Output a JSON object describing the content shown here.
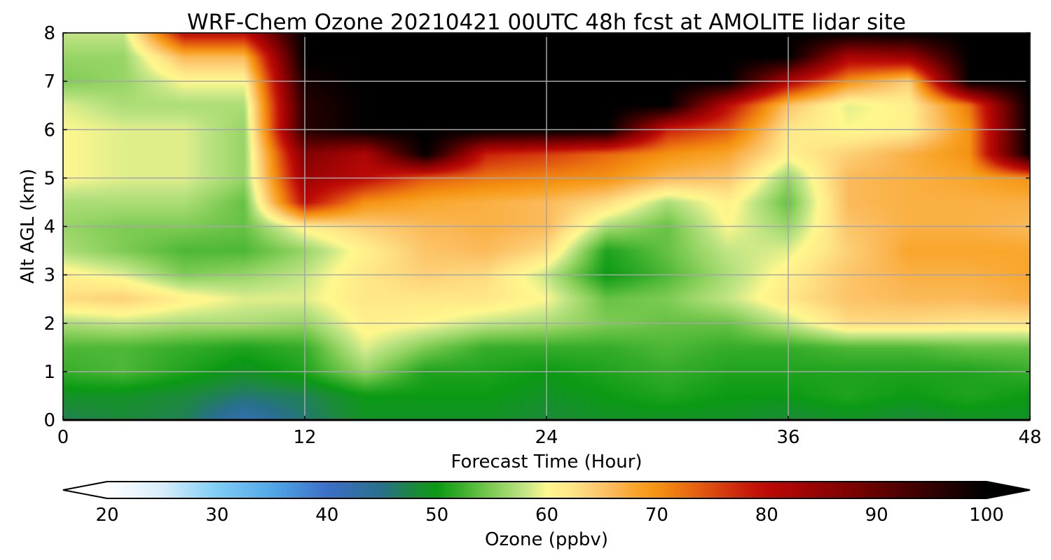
{
  "chart_data": {
    "type": "heatmap",
    "title": "WRF-Chem Ozone  20210421 00UTC 48h fcst at AMOLITE lidar site",
    "xlabel": "Forecast Time (Hour)",
    "ylabel": "Alt AGL (km)",
    "xlim": [
      0,
      48
    ],
    "ylim": [
      0,
      8
    ],
    "xticks": [
      "0",
      "12",
      "24",
      "36",
      "48"
    ],
    "yticks": [
      "0",
      "1",
      "2",
      "3",
      "4",
      "5",
      "6",
      "7",
      "8"
    ],
    "grid": true,
    "x": [
      0,
      3,
      6,
      9,
      12,
      15,
      18,
      21,
      24,
      27,
      30,
      33,
      36,
      39,
      42,
      45,
      48
    ],
    "y": [
      0,
      0.5,
      1,
      1.5,
      2,
      2.5,
      3,
      3.5,
      4,
      4.5,
      5,
      5.5,
      6,
      6.5,
      7,
      7.5,
      8
    ],
    "z_rows_by_altitude": [
      [
        47,
        48,
        47,
        42,
        46,
        49,
        49,
        49,
        48,
        49,
        49,
        49,
        48,
        49,
        48,
        49,
        49
      ],
      [
        49,
        49,
        48,
        46,
        47,
        50,
        50,
        50,
        49,
        50,
        51,
        50,
        50,
        51,
        50,
        51,
        50
      ],
      [
        52,
        53,
        51,
        49,
        51,
        56,
        51,
        51,
        50,
        51,
        52,
        51,
        51,
        51,
        51,
        51,
        52
      ],
      [
        53,
        53,
        52,
        51,
        52,
        59,
        55,
        52,
        52,
        52,
        53,
        52,
        52,
        53,
        53,
        54,
        54
      ],
      [
        57,
        58,
        57,
        57,
        56,
        61,
        60,
        58,
        57,
        55,
        54,
        54,
        58,
        63,
        63,
        62,
        62
      ],
      [
        63,
        64,
        61,
        59,
        59,
        62,
        62,
        62,
        60,
        54,
        55,
        58,
        62,
        65,
        66,
        66,
        67
      ],
      [
        61,
        59,
        55,
        56,
        58,
        62,
        64,
        63,
        58,
        50,
        53,
        57,
        61,
        65,
        67,
        67,
        68
      ],
      [
        57,
        55,
        53,
        53,
        56,
        61,
        65,
        66,
        63,
        51,
        54,
        58,
        59,
        64,
        68,
        68,
        68
      ],
      [
        56,
        55,
        55,
        54,
        61,
        64,
        66,
        67,
        66,
        57,
        54,
        60,
        56,
        65,
        67,
        67,
        66
      ],
      [
        57,
        57,
        57,
        54,
        80,
        70,
        68,
        67,
        66,
        63,
        57,
        61,
        54,
        66,
        67,
        67,
        67
      ],
      [
        60,
        59,
        59,
        56,
        84,
        80,
        74,
        72,
        71,
        70,
        66,
        65,
        56,
        66,
        67,
        68,
        70
      ],
      [
        60,
        59,
        59,
        56,
        87,
        82,
        100,
        78,
        76,
        73,
        70,
        68,
        61,
        64,
        67,
        70,
        100
      ],
      [
        60,
        59,
        59,
        56,
        96,
        100,
        100,
        100,
        100,
        100,
        78,
        74,
        62,
        60,
        61,
        70,
        100
      ],
      [
        59,
        57,
        57,
        57,
        96,
        100,
        100,
        100,
        100,
        100,
        100,
        80,
        65,
        59,
        61,
        72,
        100
      ],
      [
        55,
        56,
        60,
        60,
        98,
        100,
        100,
        100,
        100,
        100,
        100,
        100,
        82,
        70,
        64,
        100,
        100
      ],
      [
        56,
        56,
        66,
        66,
        100,
        100,
        100,
        100,
        100,
        100,
        100,
        100,
        100,
        82,
        84,
        100,
        100
      ],
      [
        58,
        58,
        80,
        80,
        100,
        100,
        100,
        100,
        100,
        100,
        100,
        100,
        100,
        100,
        100,
        100,
        100
      ]
    ],
    "colorbar": {
      "label": "Ozone  (ppbv)",
      "min": 20,
      "max": 100,
      "ticks": [
        "20",
        "30",
        "40",
        "50",
        "60",
        "70",
        "80",
        "90",
        "100"
      ],
      "extend": "both",
      "color_stops": [
        [
          20,
          "#ffffff"
        ],
        [
          25,
          "#d8eefb"
        ],
        [
          30,
          "#7fcdf5"
        ],
        [
          35,
          "#52a8e8"
        ],
        [
          40,
          "#3c6fc8"
        ],
        [
          45,
          "#28708a"
        ],
        [
          48,
          "#1c8a3a"
        ],
        [
          50,
          "#0b9a14"
        ],
        [
          52,
          "#35ad2a"
        ],
        [
          54,
          "#67c244"
        ],
        [
          56,
          "#97d566"
        ],
        [
          58,
          "#c2e586"
        ],
        [
          60,
          "#fff88e"
        ],
        [
          62,
          "#ffe888"
        ],
        [
          64,
          "#fdd076"
        ],
        [
          66,
          "#fbba5a"
        ],
        [
          68,
          "#f9a62c"
        ],
        [
          70,
          "#f59312"
        ],
        [
          72,
          "#ee7810"
        ],
        [
          74,
          "#e25a10"
        ],
        [
          76,
          "#d63c0e"
        ],
        [
          78,
          "#c8200a"
        ],
        [
          80,
          "#bd0a06"
        ],
        [
          84,
          "#9c0404"
        ],
        [
          88,
          "#7a0202"
        ],
        [
          92,
          "#500000"
        ],
        [
          96,
          "#280000"
        ],
        [
          100,
          "#000000"
        ]
      ]
    }
  }
}
